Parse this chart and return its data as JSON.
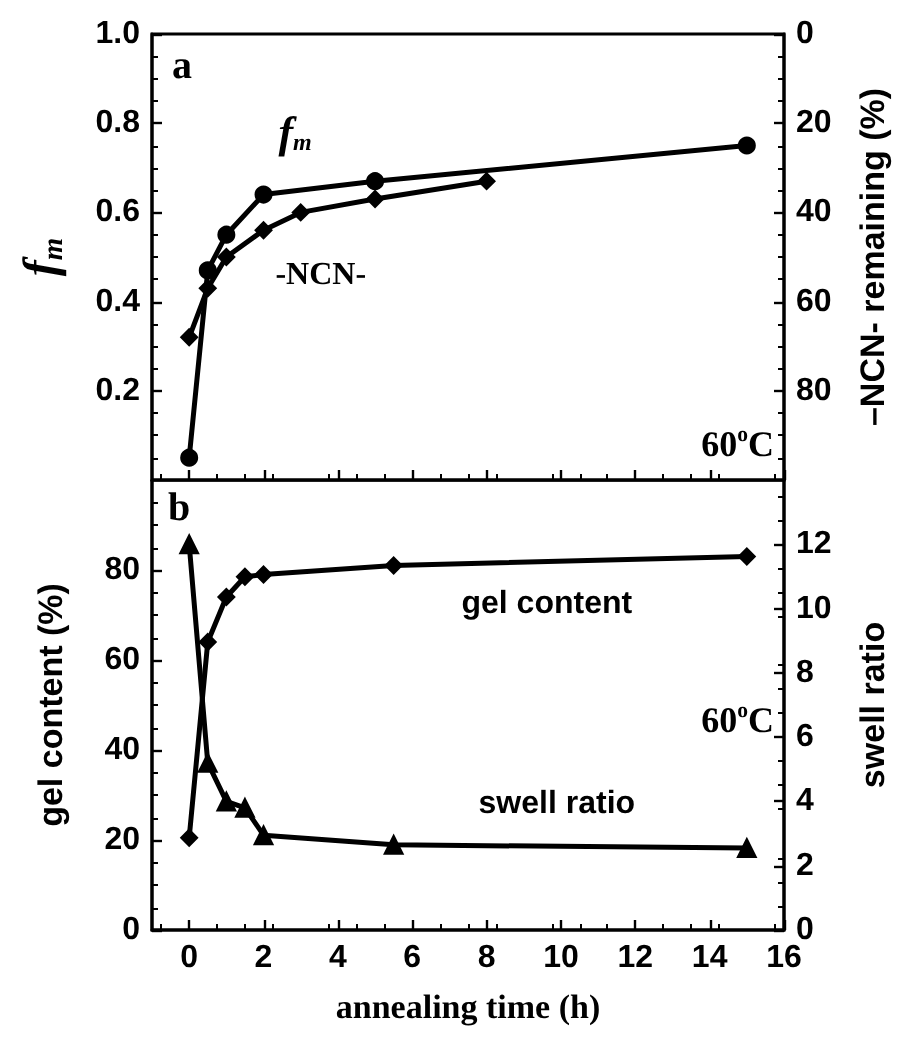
{
  "chart_data": [
    {
      "type": "line",
      "ylabel": "f$_{m}$",
      "y2label": "–NCN- remaining (%)",
      "annotations": [
        "a",
        "60$^{o}$C"
      ],
      "tick_labels": "y",
      "xlim": [
        -1,
        16
      ],
      "xticks": [
        0,
        2,
        4,
        6,
        8,
        10,
        12,
        14,
        16
      ],
      "ylim": [
        0,
        1
      ],
      "yticks": [
        0.2,
        0.4,
        0.6,
        {
          "value": 0.8,
          "label": "0.8"
        },
        {
          "value": 1,
          "label": "1.0"
        }
      ],
      "y2lim": [
        100,
        0
      ],
      "y2ticks": [
        0,
        20,
        40,
        60,
        80
      ],
      "series": [
        {
          "name": "f$_{m}$",
          "color": "#000000",
          "marker": "circle",
          "x": [
            0,
            0.5,
            1,
            2,
            5,
            15
          ],
          "values": [
            0.05,
            0.47,
            0.55,
            0.64,
            0.67,
            0.75
          ]
        },
        {
          "name": "-NCN-",
          "color": "#000000",
          "marker": "diamond",
          "axis": "y2",
          "x": [
            0,
            0.5,
            1,
            2,
            3,
            5,
            8
          ],
          "values": [
            68,
            57,
            50,
            44,
            40,
            37,
            33
          ]
        }
      ]
    },
    {
      "type": "line",
      "xlabel": "annealing time (h)",
      "ylabel": "gel content (%)",
      "y2label": "swell ratio",
      "annotations": [
        "b",
        "60$^{o}$C"
      ],
      "xlim": [
        -1,
        16
      ],
      "xticks": [
        0,
        2,
        4,
        6,
        8,
        10,
        12,
        14,
        16
      ],
      "ylim": [
        0,
        100
      ],
      "yticks": [
        0,
        20,
        40,
        60,
        80
      ],
      "y2lim": [
        0,
        14
      ],
      "y2ticks": [
        0,
        2,
        4,
        6,
        8,
        10,
        12
      ],
      "series": [
        {
          "name": "gel content",
          "color": "#000000",
          "marker": "diamond",
          "x": [
            0,
            0.5,
            1,
            1.5,
            2,
            5.5,
            15
          ],
          "values": [
            20.5,
            64,
            74,
            78.5,
            79,
            81,
            83
          ]
        },
        {
          "name": "swell ratio",
          "color": "#000000",
          "marker": "triangle",
          "axis": "y2",
          "x": [
            0,
            0.5,
            1,
            1.5,
            2,
            5.5,
            15
          ],
          "values": [
            12,
            5.2,
            4,
            3.8,
            2.95,
            2.65,
            2.55
          ]
        }
      ]
    }
  ]
}
